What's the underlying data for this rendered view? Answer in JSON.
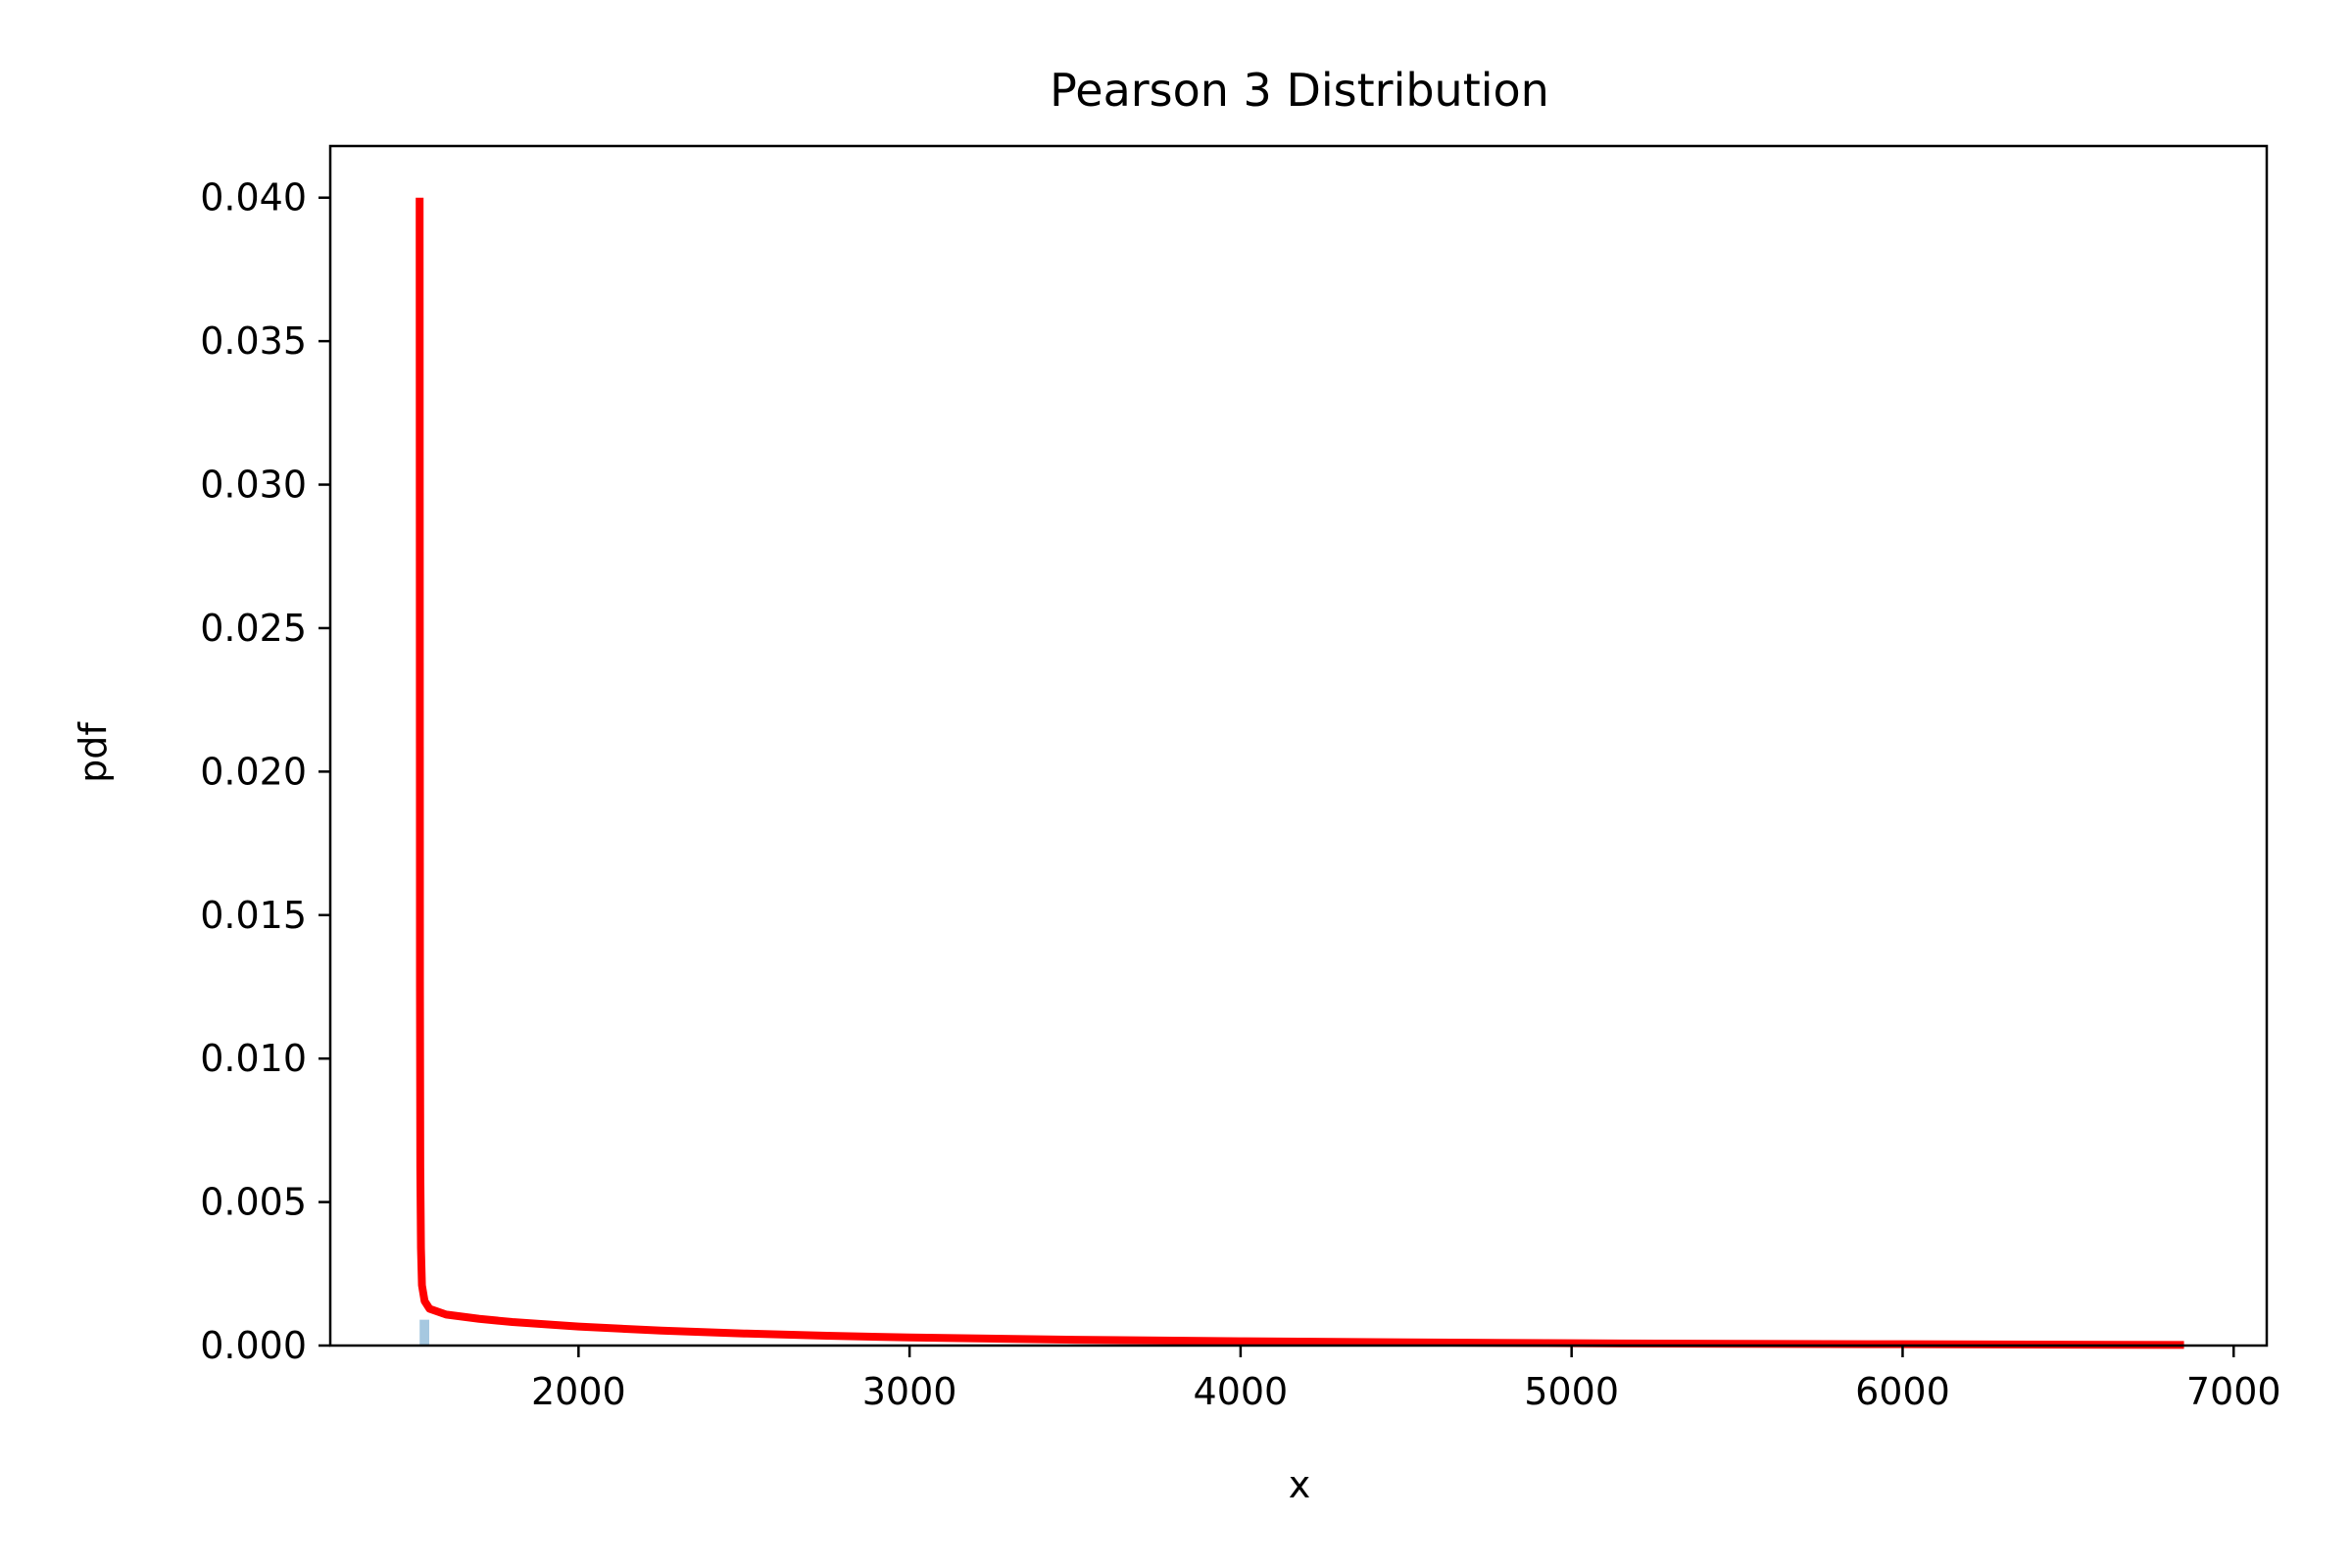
{
  "chart_data": {
    "type": "line",
    "title": "Pearson 3 Distribution",
    "xlabel": "x",
    "ylabel": "pdf",
    "xlim": [
      1250,
      7100
    ],
    "ylim": [
      0,
      0.0418
    ],
    "grid": false,
    "legend": "none",
    "x_ticks": [
      2000,
      3000,
      4000,
      5000,
      6000,
      7000
    ],
    "x_tick_labels": [
      "2000",
      "3000",
      "4000",
      "5000",
      "6000",
      "7000"
    ],
    "y_ticks": [
      0,
      0.005,
      0.01,
      0.015,
      0.02,
      0.025,
      0.03,
      0.035,
      0.04
    ],
    "y_tick_labels": [
      "0.000",
      "0.005",
      "0.010",
      "0.015",
      "0.020",
      "0.025",
      "0.030",
      "0.035",
      "0.040"
    ],
    "series": [
      {
        "color": "#ff0000",
        "x": [
          1520,
          1521,
          1522,
          1524,
          1527,
          1535,
          1550,
          1600,
          1700,
          1800,
          2000,
          2250,
          2500,
          2750,
          3000,
          3500,
          4000,
          4500,
          5000,
          5500,
          6000,
          6500,
          6850
        ],
        "y": [
          0.04,
          0.0125,
          0.0062,
          0.0034,
          0.0021,
          0.00155,
          0.00128,
          0.00108,
          0.00093,
          0.00082,
          0.00066,
          0.00052,
          0.00042,
          0.00034,
          0.00028,
          0.0002,
          0.00015,
          0.00011,
          8e-05,
          6e-05,
          4.5e-05,
          3e-05,
          2.2e-05
        ]
      }
    ],
    "histogram": {
      "color": "#a6c8e0",
      "x": [
        1520,
        1549
      ],
      "y": [
        0.0009
      ]
    }
  }
}
